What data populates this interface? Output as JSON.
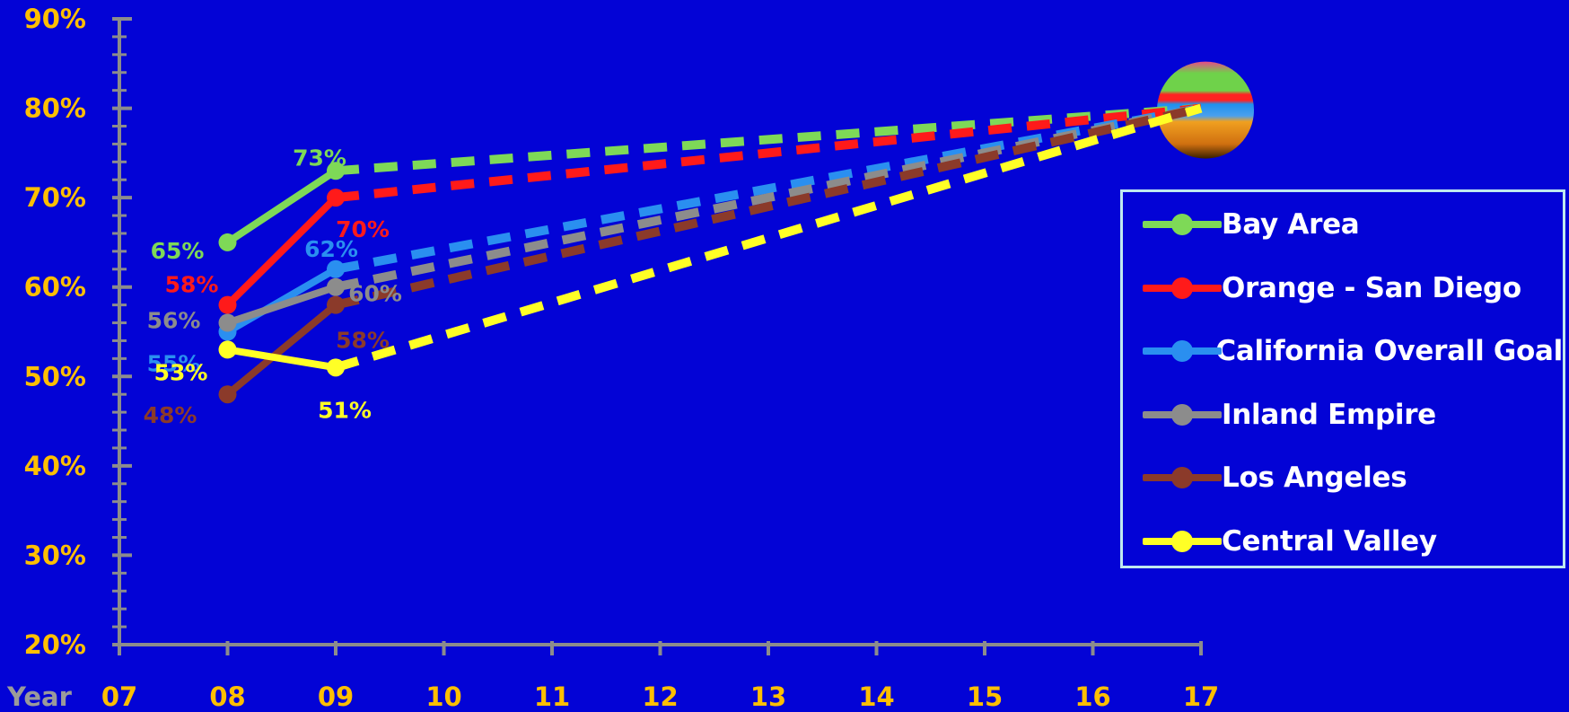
{
  "chart_data": {
    "type": "line",
    "x_label": "Year",
    "x_ticks": [
      "07",
      "08",
      "09",
      "10",
      "11",
      "12",
      "13",
      "14",
      "15",
      "16",
      "17"
    ],
    "y_ticks": [
      "20%",
      "30%",
      "40%",
      "50%",
      "60%",
      "70%",
      "80%",
      "90%"
    ],
    "ylim": [
      20,
      90
    ],
    "grid": false,
    "legend_position": "right",
    "goal": {
      "x": "17",
      "y": 80
    },
    "series": [
      {
        "name": "Bay Area",
        "color": "#7ed957",
        "actual": [
          {
            "x": "08",
            "y": 65,
            "label": "65%"
          },
          {
            "x": "09",
            "y": 73,
            "label": "73%"
          }
        ],
        "projection": [
          {
            "x": "09",
            "y": 73
          },
          {
            "x": "17",
            "y": 80
          }
        ]
      },
      {
        "name": "Orange - San Diego",
        "color": "#ff1a1a",
        "actual": [
          {
            "x": "08",
            "y": 58,
            "label": "58%"
          },
          {
            "x": "09",
            "y": 70,
            "label": "70%"
          }
        ],
        "projection": [
          {
            "x": "09",
            "y": 70
          },
          {
            "x": "17",
            "y": 80
          }
        ]
      },
      {
        "name": "California Overall Goal",
        "color": "#2a8ff0",
        "actual": [
          {
            "x": "08",
            "y": 55,
            "label": "55%"
          },
          {
            "x": "09",
            "y": 62,
            "label": "62%"
          }
        ],
        "projection": [
          {
            "x": "09",
            "y": 62
          },
          {
            "x": "17",
            "y": 80
          }
        ]
      },
      {
        "name": "Inland Empire",
        "color": "#8c8c8c",
        "actual": [
          {
            "x": "08",
            "y": 56,
            "label": "56%"
          },
          {
            "x": "09",
            "y": 60,
            "label": "60%"
          }
        ],
        "projection": [
          {
            "x": "09",
            "y": 60
          },
          {
            "x": "17",
            "y": 80
          }
        ]
      },
      {
        "name": "Los Angeles",
        "color": "#8b3a2a",
        "actual": [
          {
            "x": "08",
            "y": 48,
            "label": "48%"
          },
          {
            "x": "09",
            "y": 58,
            "label": "58%"
          }
        ],
        "projection": [
          {
            "x": "09",
            "y": 58
          },
          {
            "x": "17",
            "y": 80
          }
        ]
      },
      {
        "name": "Central Valley",
        "color": "#ffff26",
        "actual": [
          {
            "x": "08",
            "y": 53,
            "label": "53%"
          },
          {
            "x": "09",
            "y": 51,
            "label": "51%"
          }
        ],
        "projection": [
          {
            "x": "09",
            "y": 51
          },
          {
            "x": "17",
            "y": 80
          }
        ]
      }
    ]
  },
  "colors": {
    "background": "#0303d6",
    "axis": "#8c8c8c",
    "tick_label": "#ffbf00",
    "axis_title": "#9a9a9a",
    "legend_border": "#bfe9ef",
    "legend_text": "#ffffff"
  }
}
